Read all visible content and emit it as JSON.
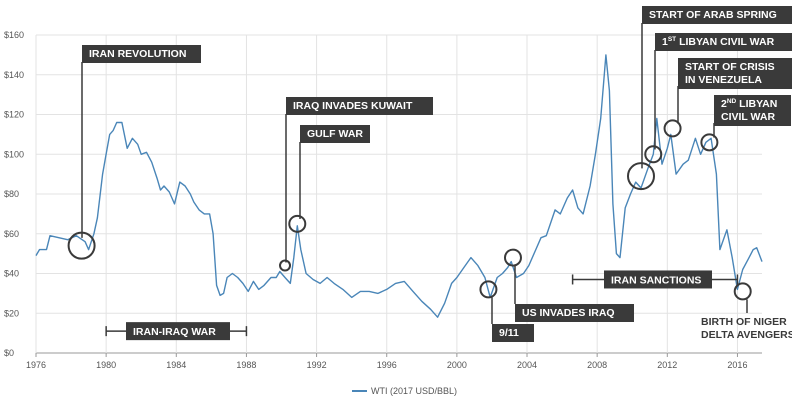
{
  "chart_data": {
    "type": "line",
    "title": "",
    "xlabel": "",
    "ylabel": "",
    "xlim": [
      1976,
      2017.4
    ],
    "ylim": [
      0,
      160
    ],
    "x_ticks": [
      "1976",
      "1980",
      "1984",
      "1988",
      "1992",
      "1996",
      "2000",
      "2004",
      "2008",
      "2012",
      "2016"
    ],
    "y_ticks": [
      "$0",
      "$20",
      "$40",
      "$60",
      "$80",
      "$100",
      "$120",
      "$140",
      "$160"
    ],
    "grid": true,
    "legend": "bottom",
    "series": [
      {
        "name": "WTI (2017 USD/BBL)",
        "color": "#4a86b8",
        "points": [
          [
            1976.0,
            49
          ],
          [
            1976.2,
            52
          ],
          [
            1976.6,
            52
          ],
          [
            1976.8,
            59
          ],
          [
            1977.3,
            58
          ],
          [
            1977.8,
            57
          ],
          [
            1978.3,
            59
          ],
          [
            1978.8,
            56
          ],
          [
            1979.0,
            52
          ],
          [
            1979.3,
            60
          ],
          [
            1979.5,
            68
          ],
          [
            1979.8,
            90
          ],
          [
            1980.0,
            100
          ],
          [
            1980.2,
            110
          ],
          [
            1980.4,
            112
          ],
          [
            1980.6,
            116
          ],
          [
            1980.9,
            116
          ],
          [
            1981.2,
            103
          ],
          [
            1981.5,
            108
          ],
          [
            1981.8,
            105
          ],
          [
            1982.0,
            100
          ],
          [
            1982.3,
            101
          ],
          [
            1982.6,
            96
          ],
          [
            1982.9,
            88
          ],
          [
            1983.1,
            82
          ],
          [
            1983.3,
            84
          ],
          [
            1983.6,
            81
          ],
          [
            1983.9,
            75
          ],
          [
            1984.2,
            86
          ],
          [
            1984.5,
            84
          ],
          [
            1984.8,
            80
          ],
          [
            1985.0,
            76
          ],
          [
            1985.3,
            72
          ],
          [
            1985.6,
            70
          ],
          [
            1985.9,
            70
          ],
          [
            1986.1,
            60
          ],
          [
            1986.3,
            34
          ],
          [
            1986.5,
            29
          ],
          [
            1986.7,
            30
          ],
          [
            1986.9,
            38
          ],
          [
            1987.2,
            40
          ],
          [
            1987.5,
            38
          ],
          [
            1987.8,
            35
          ],
          [
            1988.1,
            31
          ],
          [
            1988.4,
            36
          ],
          [
            1988.7,
            32
          ],
          [
            1989.0,
            34
          ],
          [
            1989.4,
            38
          ],
          [
            1989.7,
            38
          ],
          [
            1989.9,
            41
          ],
          [
            1990.2,
            38
          ],
          [
            1990.5,
            35
          ],
          [
            1990.7,
            48
          ],
          [
            1990.9,
            64
          ],
          [
            1991.1,
            52
          ],
          [
            1991.4,
            40
          ],
          [
            1991.8,
            37
          ],
          [
            1992.2,
            35
          ],
          [
            1992.6,
            38
          ],
          [
            1993.0,
            35
          ],
          [
            1993.5,
            32
          ],
          [
            1994.0,
            28
          ],
          [
            1994.5,
            31
          ],
          [
            1995.0,
            31
          ],
          [
            1995.5,
            30
          ],
          [
            1996.0,
            32
          ],
          [
            1996.5,
            35
          ],
          [
            1997.0,
            36
          ],
          [
            1997.5,
            31
          ],
          [
            1998.0,
            26
          ],
          [
            1998.5,
            22
          ],
          [
            1998.9,
            18
          ],
          [
            1999.3,
            25
          ],
          [
            1999.7,
            35
          ],
          [
            2000.0,
            38
          ],
          [
            2000.4,
            43
          ],
          [
            2000.8,
            48
          ],
          [
            2001.2,
            44
          ],
          [
            2001.6,
            38
          ],
          [
            2001.9,
            28
          ],
          [
            2002.3,
            38
          ],
          [
            2002.6,
            40
          ],
          [
            2002.9,
            43
          ],
          [
            2003.1,
            46
          ],
          [
            2003.4,
            38
          ],
          [
            2003.8,
            40
          ],
          [
            2004.1,
            44
          ],
          [
            2004.5,
            52
          ],
          [
            2004.8,
            58
          ],
          [
            2005.1,
            59
          ],
          [
            2005.6,
            72
          ],
          [
            2005.9,
            70
          ],
          [
            2006.3,
            78
          ],
          [
            2006.6,
            82
          ],
          [
            2006.9,
            73
          ],
          [
            2007.2,
            70
          ],
          [
            2007.6,
            84
          ],
          [
            2007.9,
            100
          ],
          [
            2008.2,
            118
          ],
          [
            2008.5,
            150
          ],
          [
            2008.7,
            132
          ],
          [
            2008.9,
            75
          ],
          [
            2009.1,
            50
          ],
          [
            2009.3,
            48
          ],
          [
            2009.6,
            73
          ],
          [
            2009.9,
            80
          ],
          [
            2010.2,
            86
          ],
          [
            2010.5,
            83
          ],
          [
            2010.9,
            93
          ],
          [
            2011.2,
            100
          ],
          [
            2011.4,
            118
          ],
          [
            2011.7,
            95
          ],
          [
            2012.0,
            103
          ],
          [
            2012.2,
            110
          ],
          [
            2012.5,
            90
          ],
          [
            2012.9,
            95
          ],
          [
            2013.2,
            97
          ],
          [
            2013.6,
            108
          ],
          [
            2013.9,
            100
          ],
          [
            2014.2,
            106
          ],
          [
            2014.5,
            108
          ],
          [
            2014.8,
            90
          ],
          [
            2015.0,
            52
          ],
          [
            2015.4,
            62
          ],
          [
            2015.7,
            48
          ],
          [
            2016.0,
            32
          ],
          [
            2016.3,
            42
          ],
          [
            2016.6,
            47
          ],
          [
            2016.9,
            52
          ],
          [
            2017.1,
            53
          ],
          [
            2017.4,
            46
          ]
        ]
      }
    ],
    "annotations": [
      {
        "id": "iran-revolution",
        "text": "IRAN REVOLUTION",
        "x": 1978.6,
        "y": 54,
        "circle": "large"
      },
      {
        "id": "iraq-invades-kuwait",
        "text": "IRAQ INVADES KUWAIT",
        "x": 1990.2,
        "y": 44,
        "circle": "small"
      },
      {
        "id": "gulf-war",
        "text": "GULF WAR",
        "x": 1990.9,
        "y": 65,
        "circle": "medium"
      },
      {
        "id": "nine-eleven",
        "text": "9/11",
        "x": 2001.8,
        "y": 32,
        "circle": "medium"
      },
      {
        "id": "us-invades-iraq",
        "text": "US INVADES IRAQ",
        "x": 2003.2,
        "y": 48,
        "circle": "medium"
      },
      {
        "id": "start-arab-spring",
        "text": "START OF ARAB SPRING",
        "x": 2010.5,
        "y": 89,
        "circle": "large"
      },
      {
        "id": "first-libyan-civil-war",
        "text": "LIBYAN CIVIL WAR",
        "prefix": "1",
        "superscript": "ST",
        "x": 2011.2,
        "y": 100,
        "circle": "medium"
      },
      {
        "id": "crisis-venezuela",
        "text": [
          "START OF CRISIS",
          "IN VENEZUELA"
        ],
        "x": 2012.3,
        "y": 113,
        "circle": "medium"
      },
      {
        "id": "second-libyan-civil-war",
        "text": [
          "LIBYAN",
          "CIVIL WAR"
        ],
        "prefix": "2",
        "superscript": "ND",
        "x": 2014.4,
        "y": 106,
        "circle": "medium"
      },
      {
        "id": "niger-delta-avengers",
        "text": [
          "BIRTH OF NIGER",
          "DELTA AVENGERS"
        ],
        "x": 2016.3,
        "y": 31,
        "circle": "medium"
      }
    ],
    "ranges": [
      {
        "id": "iran-iraq-war",
        "text": "IRAN-IRAQ WAR",
        "x_start": 1980.0,
        "x_end": 1988.0,
        "y": 11
      },
      {
        "id": "iran-sanctions",
        "text": "IRAN SANCTIONS",
        "x_start": 2006.6,
        "x_end": 2016.0,
        "y": 37
      }
    ]
  }
}
